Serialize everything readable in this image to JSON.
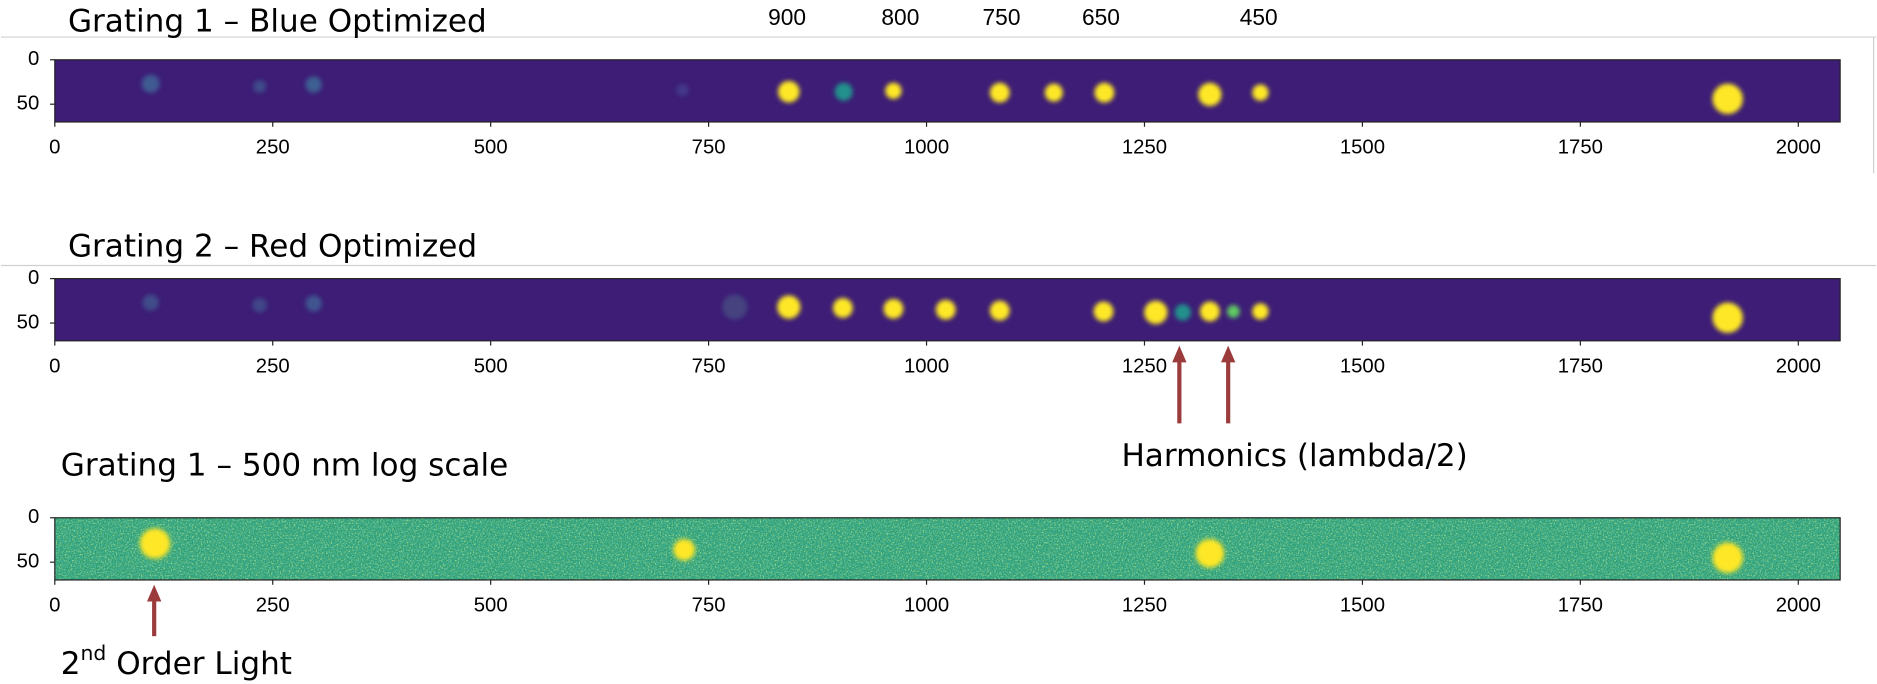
{
  "panels": [
    {
      "title": "Grating 1 –  Blue Optimized",
      "background": "#3d1d76",
      "noise": false,
      "xlim": [
        0,
        2048
      ],
      "ylim": [
        70,
        0
      ],
      "xticks": [
        0,
        250,
        500,
        750,
        1000,
        1250,
        1500,
        1750,
        2000
      ],
      "yticks": [
        0,
        50
      ],
      "wavelength_labels": [
        {
          "label": "900",
          "x": 840
        },
        {
          "label": "800",
          "x": 970
        },
        {
          "label": "750",
          "x": 1086
        },
        {
          "label": "650",
          "x": 1200
        },
        {
          "label": "450",
          "x": 1381
        }
      ],
      "spots": [
        {
          "x": 110,
          "y": 27,
          "r": 9,
          "color": "#3f5a92"
        },
        {
          "x": 235,
          "y": 30,
          "r": 6,
          "color": "#3f4c8a"
        },
        {
          "x": 297,
          "y": 28,
          "r": 8,
          "color": "#3d5f92"
        },
        {
          "x": 720,
          "y": 34,
          "r": 6,
          "color": "#43388a"
        },
        {
          "x": 842,
          "y": 36,
          "r": 11,
          "color": "#fde725"
        },
        {
          "x": 905,
          "y": 36,
          "r": 9,
          "color": "#22908c"
        },
        {
          "x": 962,
          "y": 35,
          "r": 8,
          "color": "#fde725"
        },
        {
          "x": 1084,
          "y": 37,
          "r": 10,
          "color": "#fde725"
        },
        {
          "x": 1146,
          "y": 37,
          "r": 9,
          "color": "#fde725"
        },
        {
          "x": 1204,
          "y": 37,
          "r": 10,
          "color": "#fde725"
        },
        {
          "x": 1325,
          "y": 39,
          "r": 12,
          "color": "#fde725"
        },
        {
          "x": 1383,
          "y": 37,
          "r": 8,
          "color": "#fde725"
        },
        {
          "x": 1919,
          "y": 44,
          "r": 16,
          "color": "#fde725"
        }
      ]
    },
    {
      "title": "Grating 2 – Red Optimized",
      "background": "#3d1d76",
      "noise": false,
      "xlim": [
        0,
        2048
      ],
      "ylim": [
        70,
        0
      ],
      "xticks": [
        0,
        250,
        500,
        750,
        1000,
        1250,
        1500,
        1750,
        2000
      ],
      "yticks": [
        0,
        50
      ],
      "spots": [
        {
          "x": 110,
          "y": 27,
          "r": 8,
          "color": "#3f4c8a"
        },
        {
          "x": 235,
          "y": 30,
          "r": 7,
          "color": "#3f4688"
        },
        {
          "x": 297,
          "y": 28,
          "r": 8,
          "color": "#3f5490"
        },
        {
          "x": 780,
          "y": 32,
          "r": 13,
          "color": "#45427f"
        },
        {
          "x": 842,
          "y": 32,
          "r": 12,
          "color": "#fde725"
        },
        {
          "x": 904,
          "y": 33,
          "r": 10,
          "color": "#fde725"
        },
        {
          "x": 962,
          "y": 34,
          "r": 10,
          "color": "#fde725"
        },
        {
          "x": 1022,
          "y": 35,
          "r": 10,
          "color": "#fde725"
        },
        {
          "x": 1084,
          "y": 36,
          "r": 10,
          "color": "#fde725"
        },
        {
          "x": 1203,
          "y": 37,
          "r": 10,
          "color": "#fde725"
        },
        {
          "x": 1263,
          "y": 38,
          "r": 12,
          "color": "#fde725"
        },
        {
          "x": 1294,
          "y": 38,
          "r": 8,
          "color": "#22908c"
        },
        {
          "x": 1325,
          "y": 37,
          "r": 10,
          "color": "#fde725"
        },
        {
          "x": 1352,
          "y": 37,
          "r": 6,
          "color": "#5ec962"
        },
        {
          "x": 1383,
          "y": 37,
          "r": 8,
          "color": "#fde725"
        },
        {
          "x": 1919,
          "y": 44,
          "r": 16,
          "color": "#fde725"
        }
      ]
    },
    {
      "title": "Grating 1 – 500 nm log scale",
      "background": "#2f9e73",
      "noise": true,
      "xlim": [
        0,
        2048
      ],
      "ylim": [
        70,
        0
      ],
      "xticks": [
        0,
        250,
        500,
        750,
        1000,
        1250,
        1500,
        1750,
        2000
      ],
      "yticks": [
        0,
        50
      ],
      "spots": [
        {
          "x": 115,
          "y": 29,
          "r": 16,
          "color": "#fde725"
        },
        {
          "x": 722,
          "y": 36,
          "r": 11,
          "color": "#fde725"
        },
        {
          "x": 1325,
          "y": 40,
          "r": 15,
          "color": "#fde725"
        },
        {
          "x": 1919,
          "y": 45,
          "r": 16,
          "color": "#fde725"
        }
      ]
    }
  ],
  "annotations": {
    "harmonics": {
      "text": "Harmonics (lambda/2)",
      "x": [
        1290,
        1346
      ]
    },
    "second_order": {
      "base": "2",
      "sup": "nd",
      "rest": " Order Light",
      "x": 114
    }
  }
}
